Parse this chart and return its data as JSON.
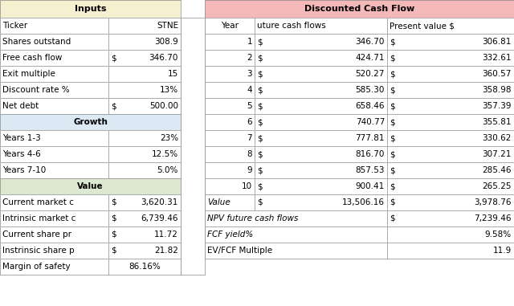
{
  "inputs_header": "Inputs",
  "inputs_header_bg": "#f5f0d0",
  "dcf_header": "Discounted Cash Flow",
  "dcf_header_bg": "#f4b8b8",
  "inputs_rows": [
    [
      "Ticker",
      "",
      "STNE"
    ],
    [
      "Shares outstand",
      "",
      "308.9"
    ],
    [
      "Free cash flow",
      "$",
      "346.70"
    ],
    [
      "Exit multiple",
      "",
      "15"
    ],
    [
      "Discount rate %",
      "",
      "13%"
    ],
    [
      "Net debt",
      "$",
      "500.00"
    ]
  ],
  "growth_header": "Growth",
  "growth_header_bg": "#dce9f5",
  "growth_rows": [
    [
      "Years 1-3",
      "",
      "23%"
    ],
    [
      "Years 4-6",
      "",
      "12.5%"
    ],
    [
      "Years 7-10",
      "",
      "5.0%"
    ]
  ],
  "value_header": "Value",
  "value_header_bg": "#dce8d0",
  "value_rows": [
    [
      "Current market c",
      "$",
      "3,620.31"
    ],
    [
      "Intrinsic market c",
      "$",
      "6,739.46"
    ],
    [
      "Current share pr",
      "$",
      "11.72"
    ],
    [
      "Instrinsic share p",
      "$",
      "21.82"
    ],
    [
      "Margin of safety",
      "",
      "86.16%"
    ]
  ],
  "dcf_subheader": [
    "Year",
    "uture cash flows",
    "Present value $"
  ],
  "dcf_data": [
    [
      "1",
      "346.70",
      "306.81"
    ],
    [
      "2",
      "424.71",
      "332.61"
    ],
    [
      "3",
      "520.27",
      "360.57"
    ],
    [
      "4",
      "585.30",
      "358.98"
    ],
    [
      "5",
      "658.46",
      "357.39"
    ],
    [
      "6",
      "740.77",
      "355.81"
    ],
    [
      "7",
      "777.81",
      "330.62"
    ],
    [
      "8",
      "816.70",
      "307.21"
    ],
    [
      "9",
      "857.53",
      "285.46"
    ],
    [
      "10",
      "900.41",
      "265.25"
    ]
  ],
  "dcf_summary": [
    [
      "Value",
      "13,506.16",
      "3,978.76"
    ],
    [
      "NPV future cash flows",
      "",
      "7,239.46"
    ],
    [
      "FCF yield%",
      "",
      "9.58%"
    ],
    [
      "EV/FCF Multiple",
      "",
      "11.9"
    ]
  ],
  "font_size": 7.5,
  "border_color": "#888888",
  "white": "#ffffff",
  "light_gray": "#f0f0f0"
}
